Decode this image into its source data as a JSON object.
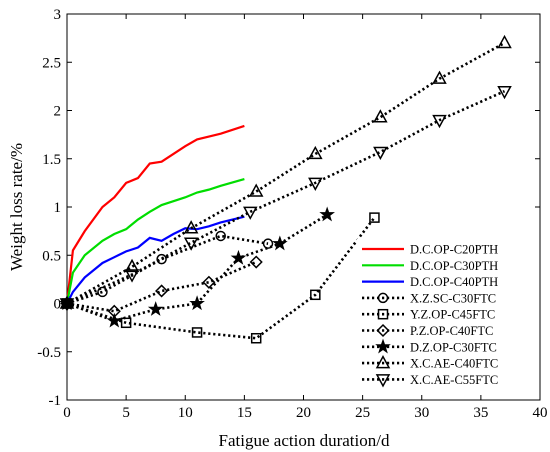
{
  "chart_data": {
    "type": "line",
    "xlabel": "Fatigue action duration/d",
    "ylabel": "Weight loss rate/%",
    "xlim": [
      0,
      40
    ],
    "ylim": [
      -1,
      3
    ],
    "xticks": [
      0,
      5,
      10,
      15,
      20,
      25,
      30,
      35,
      40
    ],
    "yticks": [
      -1,
      -0.5,
      0,
      0.5,
      1,
      1.5,
      2,
      2.5,
      3
    ],
    "xtick_labels": [
      "0",
      "5",
      "10",
      "15",
      "20",
      "25",
      "30",
      "35",
      "40"
    ],
    "ytick_labels": [
      "-1",
      "-0.5",
      "0",
      "0.5",
      "1",
      "1.5",
      "2",
      "2.5",
      "3"
    ],
    "grid": false,
    "legend_position": "right",
    "series": [
      {
        "name": "D.C.OP-C20PTH",
        "style": "solid",
        "color": "#ff0000",
        "marker": "none",
        "x": [
          0,
          0.5,
          1.5,
          3,
          4,
          5,
          6,
          7,
          8,
          9,
          10,
          11,
          12,
          13,
          15
        ],
        "y": [
          0,
          0.55,
          0.75,
          1.0,
          1.1,
          1.25,
          1.3,
          1.45,
          1.47,
          1.55,
          1.63,
          1.7,
          1.73,
          1.76,
          1.84
        ]
      },
      {
        "name": "D.C.OP-C30PTH",
        "style": "solid",
        "color": "#00dd00",
        "marker": "none",
        "x": [
          0,
          0.5,
          1.5,
          3,
          4,
          5,
          6,
          7,
          8,
          9,
          10,
          11,
          12,
          13,
          15
        ],
        "y": [
          0,
          0.32,
          0.5,
          0.65,
          0.72,
          0.77,
          0.87,
          0.95,
          1.02,
          1.06,
          1.1,
          1.15,
          1.18,
          1.22,
          1.29
        ]
      },
      {
        "name": "D.C.OP-C40PTH",
        "style": "solid",
        "color": "#0000ff",
        "marker": "none",
        "x": [
          0,
          0.5,
          1.5,
          3,
          4,
          5,
          6,
          7,
          8,
          9,
          10,
          11,
          12,
          13,
          15
        ],
        "y": [
          0,
          0.12,
          0.27,
          0.42,
          0.48,
          0.54,
          0.58,
          0.68,
          0.65,
          0.72,
          0.78,
          0.77,
          0.8,
          0.84,
          0.9
        ]
      },
      {
        "name": "X.Z.SC-C30FTC",
        "style": "dotted",
        "color": "#000000",
        "marker": "circle",
        "x": [
          0,
          3,
          8,
          13,
          17
        ],
        "y": [
          0,
          0.12,
          0.46,
          0.7,
          0.62
        ]
      },
      {
        "name": "Y.Z.OP-C45FTC",
        "style": "dotted",
        "color": "#000000",
        "marker": "square",
        "x": [
          0,
          5,
          11,
          16,
          21,
          26
        ],
        "y": [
          0,
          -0.2,
          -0.3,
          -0.36,
          0.09,
          0.89
        ]
      },
      {
        "name": "P.Z.OP-C40FTC",
        "style": "dotted",
        "color": "#000000",
        "marker": "diamond",
        "x": [
          0,
          4,
          8,
          12,
          16
        ],
        "y": [
          0,
          -0.08,
          0.13,
          0.22,
          0.43
        ]
      },
      {
        "name": "D.Z.OP-C30FTC",
        "style": "dotted",
        "color": "#000000",
        "marker": "star",
        "x": [
          0,
          4,
          7.5,
          11,
          14.5,
          18,
          22
        ],
        "y": [
          0,
          -0.18,
          -0.06,
          0.0,
          0.47,
          0.62,
          0.92
        ]
      },
      {
        "name": "X.C.AE-C40FTC",
        "style": "dotted",
        "color": "#000000",
        "marker": "triangle-up",
        "x": [
          0,
          5.5,
          10.5,
          16,
          21,
          26.5,
          31.5,
          37
        ],
        "y": [
          0,
          0.38,
          0.78,
          1.16,
          1.55,
          1.93,
          2.33,
          2.7
        ]
      },
      {
        "name": "X.C.AE-C55FTC",
        "style": "dotted",
        "color": "#000000",
        "marker": "triangle-down",
        "x": [
          0,
          5.5,
          10.5,
          15.5,
          21,
          26.5,
          31.5,
          37
        ],
        "y": [
          0,
          0.3,
          0.63,
          0.95,
          1.25,
          1.57,
          1.9,
          2.2
        ]
      }
    ]
  }
}
